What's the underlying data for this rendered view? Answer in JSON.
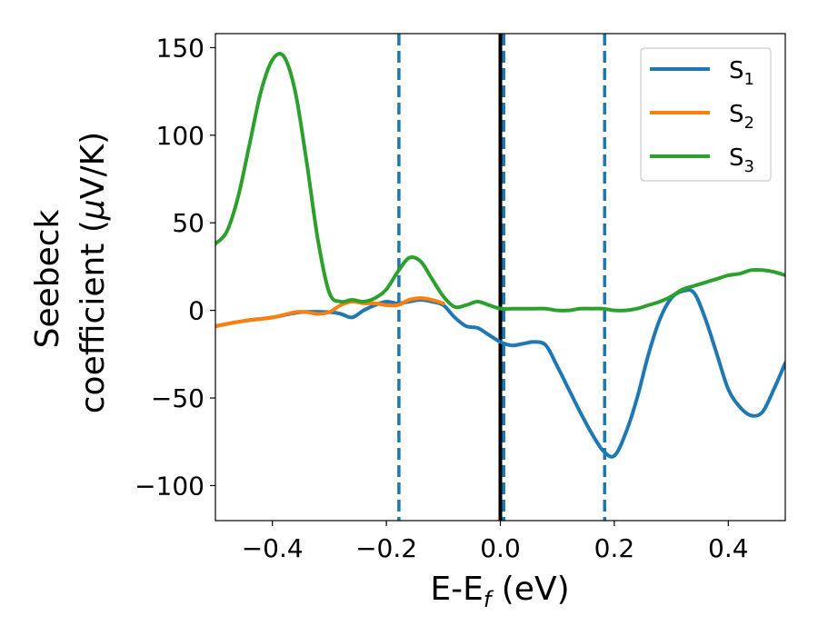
{
  "chart_data": {
    "type": "line",
    "xlabel": "E-E",
    "xlabel_sub": "f",
    "xlabel_unit": " (eV)",
    "ylabel_line1": "Seebeck",
    "ylabel_line2_a": "coefficient  (",
    "ylabel_mu": "μ",
    "ylabel_line2_b": "V/K)",
    "xlim": [
      -0.5,
      0.5
    ],
    "ylim": [
      -120,
      158
    ],
    "xticks": [
      -0.4,
      -0.2,
      0.0,
      0.2,
      0.4
    ],
    "xtick_labels": [
      "−0.4",
      "−0.2",
      "0.0",
      "0.2",
      "0.4"
    ],
    "yticks": [
      -100,
      -50,
      0,
      50,
      100,
      150
    ],
    "ytick_labels": [
      "−100",
      "−50",
      "0",
      "50",
      "100",
      "150"
    ],
    "legend_position": "top-right",
    "vlines": [
      {
        "x": -0.178,
        "style": "dashed",
        "color": "#1f77b4"
      },
      {
        "x": 0.0,
        "style": "solid",
        "color": "#000000"
      },
      {
        "x": 0.006,
        "style": "dashed",
        "color": "#1f77b4"
      },
      {
        "x": 0.183,
        "style": "dashed",
        "color": "#1f77b4"
      }
    ],
    "series": [
      {
        "name": "S",
        "sub": "1",
        "color": "#1f77b4",
        "x": [
          -0.5,
          -0.45,
          -0.4,
          -0.35,
          -0.3,
          -0.28,
          -0.26,
          -0.24,
          -0.22,
          -0.2,
          -0.18,
          -0.16,
          -0.14,
          -0.12,
          -0.1,
          -0.08,
          -0.06,
          -0.04,
          -0.02,
          0.0,
          0.02,
          0.04,
          0.06,
          0.08,
          0.1,
          0.12,
          0.14,
          0.16,
          0.18,
          0.2,
          0.22,
          0.24,
          0.26,
          0.28,
          0.3,
          0.32,
          0.34,
          0.36,
          0.38,
          0.4,
          0.42,
          0.44,
          0.46,
          0.48,
          0.5
        ],
        "y": [
          -9,
          -6,
          -4,
          -1,
          -1,
          -2,
          -4,
          0,
          3,
          5,
          4,
          5,
          6,
          5,
          3,
          -4,
          -9,
          -10,
          -14,
          -18,
          -20,
          -19,
          -18,
          -20,
          -32,
          -45,
          -58,
          -70,
          -80,
          -83,
          -70,
          -50,
          -25,
          -5,
          7,
          11,
          10,
          -5,
          -25,
          -45,
          -55,
          -60,
          -58,
          -45,
          -30
        ]
      },
      {
        "name": "S",
        "sub": "2",
        "color": "#ff7f0e",
        "x": [
          -0.5,
          -0.45,
          -0.4,
          -0.36,
          -0.34,
          -0.32,
          -0.3,
          -0.28,
          -0.26,
          -0.24,
          -0.22,
          -0.2,
          -0.18,
          -0.16,
          -0.14,
          -0.12,
          -0.1
        ],
        "y": [
          -9,
          -6,
          -4,
          -1,
          -1,
          -2,
          -1,
          3,
          5,
          4,
          4,
          3,
          3,
          6,
          7,
          6,
          4
        ]
      },
      {
        "name": "S",
        "sub": "3",
        "color": "#2ca02c",
        "x": [
          -0.5,
          -0.48,
          -0.46,
          -0.44,
          -0.42,
          -0.4,
          -0.38,
          -0.36,
          -0.34,
          -0.32,
          -0.3,
          -0.28,
          -0.26,
          -0.24,
          -0.22,
          -0.2,
          -0.18,
          -0.16,
          -0.14,
          -0.12,
          -0.1,
          -0.08,
          -0.06,
          -0.04,
          -0.02,
          0.0,
          0.02,
          0.04,
          0.06,
          0.08,
          0.1,
          0.12,
          0.14,
          0.16,
          0.18,
          0.2,
          0.22,
          0.24,
          0.26,
          0.28,
          0.3,
          0.32,
          0.34,
          0.36,
          0.38,
          0.4,
          0.42,
          0.44,
          0.46,
          0.48,
          0.5
        ],
        "y": [
          38,
          45,
          65,
          95,
          125,
          143,
          145,
          125,
          85,
          40,
          10,
          5,
          6,
          5,
          7,
          12,
          22,
          30,
          28,
          18,
          8,
          2,
          3,
          5,
          3,
          1,
          1,
          1,
          1,
          1,
          0,
          0,
          1,
          1,
          1,
          0,
          0,
          1,
          3,
          5,
          8,
          12,
          14,
          16,
          18,
          20,
          21,
          23,
          23,
          22,
          20
        ]
      }
    ]
  }
}
